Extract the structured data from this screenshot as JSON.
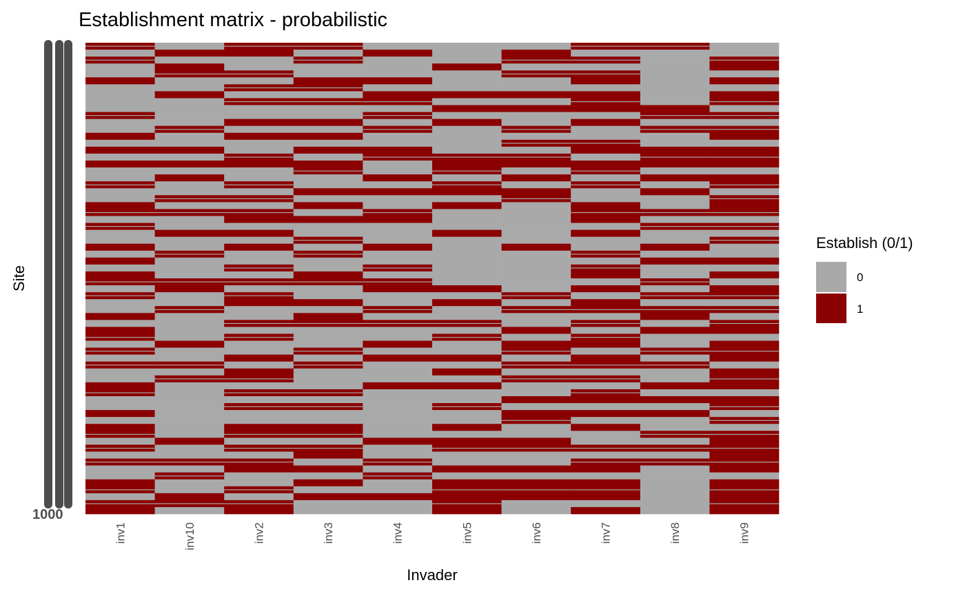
{
  "chart_data": {
    "type": "heatmap",
    "title": "Establishment matrix - probabilistic",
    "xlabel": "Invader",
    "ylabel": "Site",
    "categories": [
      "inv1",
      "inv10",
      "inv2",
      "inv3",
      "inv4",
      "inv5",
      "inv6",
      "inv7",
      "inv8",
      "inv9"
    ],
    "y_tick_labels_bottom": "1000",
    "legend": {
      "title": "Establish (0/1)",
      "placement": "right",
      "entries": [
        {
          "label": "0",
          "color": "#A9A9A9"
        },
        {
          "label": "1",
          "color": "#8B0000"
        }
      ]
    },
    "grid": false,
    "values_by_column_top_to_bottom": [
      "10100100001001010100100110100101011010010110101001100101101010011011",
      "01011001000010010101001010010010001100100001001010000000010010100110",
      "11001010100101001100101011010100101011001010010110101001101011001011",
      "10100110100101010110010101001010011001011000101000101001101101010100",
      "01000101101010011001010011000100101100101001010001000000010010100100",
      "00010001010100001110110100010000000101001010010101001001011001011111",
      "01101001010010101101011000000100000010100101101010010110011001011100",
      "10101101110100110110100111010010110101101011011010110101001011011101",
      "10000000011010011101010010100101001010110100101001010100101010000000",
      "00110101101011011101101110101001010110101101110111011010111111011111"
    ]
  }
}
